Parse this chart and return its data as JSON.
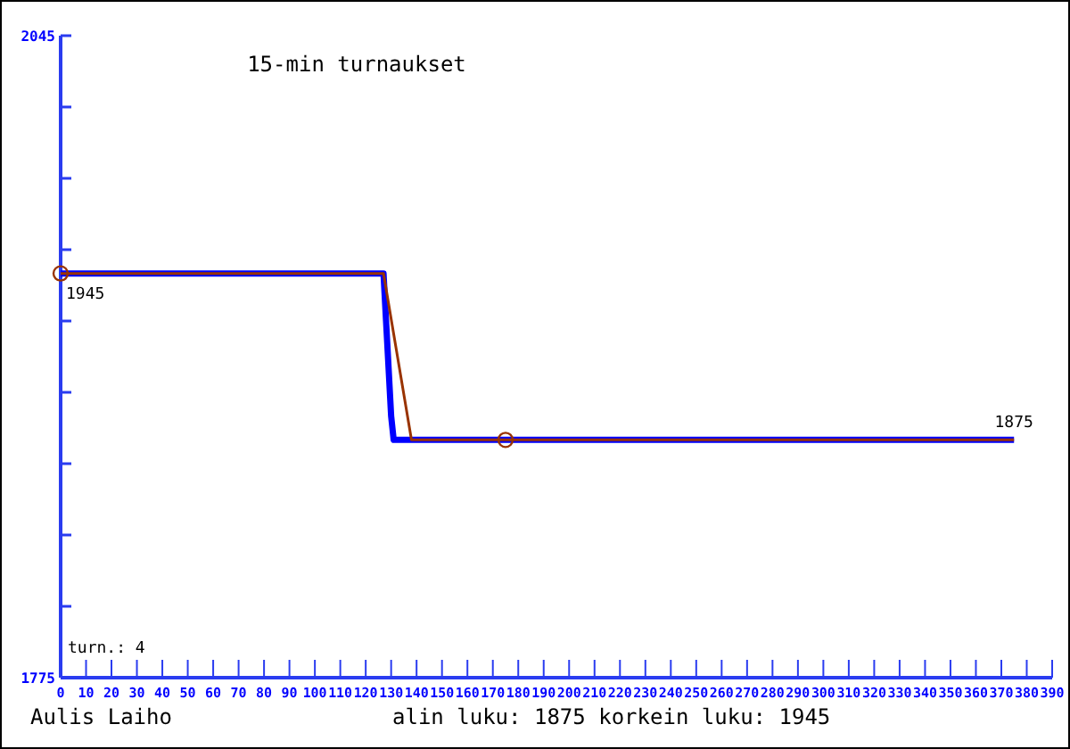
{
  "chart_data": {
    "type": "line",
    "title": "15-min turnaukset",
    "xlim": [
      0,
      390
    ],
    "xticks": [
      0,
      10,
      20,
      30,
      40,
      50,
      60,
      70,
      80,
      90,
      100,
      110,
      120,
      130,
      140,
      150,
      160,
      170,
      180,
      190,
      200,
      210,
      220,
      230,
      240,
      250,
      260,
      270,
      280,
      290,
      300,
      310,
      320,
      330,
      340,
      350,
      360,
      370,
      380,
      390
    ],
    "ylim": [
      1775,
      2045
    ],
    "yticks": [
      1775,
      {
        "value": 1805,
        "label": null
      },
      {
        "value": 1835,
        "label": null
      },
      {
        "value": 1865,
        "label": null
      },
      {
        "value": 1895,
        "label": null
      },
      {
        "value": 1925,
        "label": null
      },
      {
        "value": 1955,
        "label": null
      },
      {
        "value": 1985,
        "label": null
      },
      {
        "value": 2015,
        "label": null
      },
      2045
    ],
    "grid": false,
    "series": [
      {
        "color": "#0000ff",
        "x": [
          0,
          127,
          128,
          130,
          131,
          375
        ],
        "values": [
          1945,
          1945,
          1925,
          1885,
          1875,
          1875
        ]
      },
      {
        "color": "#993300",
        "x": [
          0,
          127,
          138,
          175,
          375
        ],
        "values": [
          1945,
          1945,
          1875,
          1875,
          1875
        ]
      },
      {
        "type": "scatter",
        "marker": "circle",
        "color": "#993300",
        "x": [
          0,
          175
        ],
        "values": [
          1945,
          1875
        ]
      }
    ],
    "annotations": [
      {
        "text": "1945",
        "x": 0,
        "y": 1945
      },
      {
        "text": "1875",
        "x": 375,
        "y": 1875
      },
      "turn.: 4",
      "Aulis Laiho",
      "alin luku: 1875  korkein luku: 1945"
    ]
  }
}
